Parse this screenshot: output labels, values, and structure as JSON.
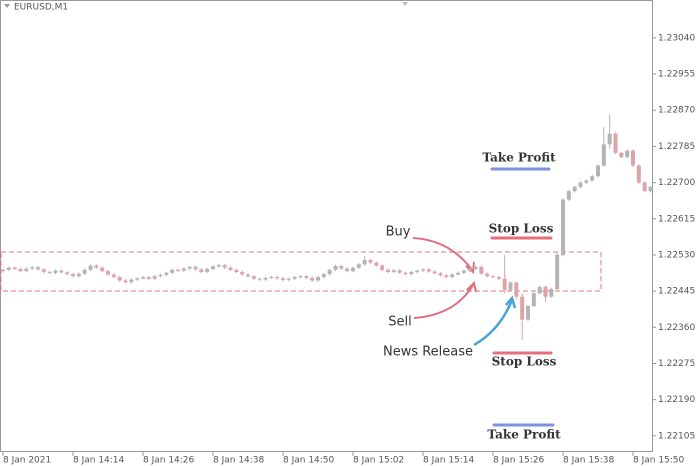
{
  "chart_data": {
    "type": "candlestick",
    "title": "EURUSD,M1",
    "categories": [
      "8 Jan 2021",
      null,
      null,
      null,
      null,
      null,
      null,
      null,
      null,
      null,
      null,
      null,
      "8 Jan 14:14",
      null,
      null,
      null,
      null,
      null,
      null,
      null,
      null,
      null,
      null,
      null,
      "8 Jan 14:26",
      null,
      null,
      null,
      null,
      null,
      null,
      null,
      null,
      null,
      null,
      null,
      "8 Jan 14:38",
      null,
      null,
      null,
      null,
      null,
      null,
      null,
      null,
      null,
      null,
      null,
      "8 Jan 14:50",
      null,
      null,
      null,
      null,
      null,
      null,
      null,
      null,
      null,
      null,
      null,
      "8 Jan 15:02",
      null,
      null,
      null,
      null,
      null,
      null,
      null,
      null,
      null,
      null,
      null,
      "8 Jan 15:14",
      null,
      null,
      null,
      null,
      null,
      null,
      null,
      null,
      null,
      null,
      null,
      "8 Jan 15:26",
      null,
      null,
      null,
      null,
      null,
      null,
      null,
      null,
      null,
      null,
      null,
      "8 Jan 15:38",
      null,
      null,
      null,
      null,
      null,
      null,
      null,
      null,
      null,
      null,
      null,
      "8 Jan 15:50",
      null,
      null,
      null
    ],
    "open": [
      1.22492,
      1.22495,
      1.225,
      1.22497,
      1.22492,
      1.22498,
      1.22501,
      1.22496,
      1.2249,
      1.22488,
      1.22493,
      1.22489,
      1.22485,
      1.2248,
      1.22486,
      1.22495,
      1.22505,
      1.225,
      1.22492,
      1.22484,
      1.22478,
      1.2247,
      1.22466,
      1.22472,
      1.22475,
      1.22478,
      1.22474,
      1.2248,
      1.22483,
      1.22488,
      1.22495,
      1.22493,
      1.22498,
      1.22502,
      1.22496,
      1.2249,
      1.22497,
      1.22503,
      1.22506,
      1.225,
      1.22495,
      1.2249,
      1.22484,
      1.2248,
      1.22474,
      1.22472,
      1.22476,
      1.22478,
      1.22475,
      1.22471,
      1.22474,
      1.22478,
      1.2248,
      1.22476,
      1.2247,
      1.22478,
      1.22485,
      1.22495,
      1.22504,
      1.22498,
      1.22492,
      1.225,
      1.22508,
      1.22518,
      1.22512,
      1.22505,
      1.22495,
      1.2249,
      1.22494,
      1.22488,
      1.22485,
      1.2249,
      1.22493,
      1.22496,
      1.22491,
      1.22487,
      1.22482,
      1.22478,
      1.22484,
      1.22488,
      1.22493,
      1.22497,
      1.22502,
      1.22486,
      1.2248,
      1.22478,
      1.22474,
      1.22448,
      1.22465,
      1.22432,
      1.22378,
      1.2241,
      1.2244,
      1.22455,
      1.22432,
      1.2245,
      1.2253,
      1.2266,
      1.2268,
      1.2269,
      1.227,
      1.22705,
      1.22715,
      1.2274,
      1.2279,
      1.22815,
      1.2277,
      1.2276,
      1.22775,
      1.2274,
      1.227,
      1.2268
    ],
    "high": [
      1.22498,
      1.22503,
      1.22503,
      1.225,
      1.22501,
      1.22504,
      1.22504,
      1.22499,
      1.22493,
      1.22496,
      1.22496,
      1.22492,
      1.22488,
      1.22489,
      1.22498,
      1.22508,
      1.22508,
      1.22503,
      1.22495,
      1.22487,
      1.22481,
      1.22473,
      1.22475,
      1.22478,
      1.22481,
      1.22481,
      1.22483,
      1.22486,
      1.22491,
      1.22498,
      1.22498,
      1.22501,
      1.22505,
      1.22505,
      1.22499,
      1.225,
      1.22506,
      1.22509,
      1.22509,
      1.22503,
      1.22498,
      1.22493,
      1.22487,
      1.22483,
      1.22477,
      1.22479,
      1.22481,
      1.22481,
      1.22478,
      1.22477,
      1.22481,
      1.22483,
      1.22483,
      1.22479,
      1.22481,
      1.22488,
      1.22498,
      1.22507,
      1.22507,
      1.22501,
      1.22503,
      1.22511,
      1.22528,
      1.22521,
      1.22515,
      1.22508,
      1.22498,
      1.22497,
      1.22497,
      1.22491,
      1.22493,
      1.22496,
      1.22499,
      1.22499,
      1.22494,
      1.2249,
      1.22485,
      1.22487,
      1.22491,
      1.22496,
      1.225,
      1.22505,
      1.22505,
      1.22489,
      1.22483,
      1.22481,
      1.2253,
      1.22468,
      1.22468,
      1.2244,
      1.22413,
      1.22443,
      1.22458,
      1.22458,
      1.22453,
      1.22535,
      1.22663,
      1.22683,
      1.22693,
      1.22703,
      1.22708,
      1.22718,
      1.22743,
      1.2283,
      1.2286,
      1.22818,
      1.22773,
      1.22778,
      1.22778,
      1.22743,
      1.22703,
      1.22693
    ],
    "low": [
      1.22489,
      1.22492,
      1.22494,
      1.22489,
      1.22489,
      1.22495,
      1.22493,
      1.22487,
      1.22485,
      1.22485,
      1.22486,
      1.22482,
      1.22477,
      1.22477,
      1.22483,
      1.22492,
      1.22497,
      1.22489,
      1.22481,
      1.22475,
      1.22467,
      1.22463,
      1.22463,
      1.22469,
      1.22472,
      1.22471,
      1.22471,
      1.22477,
      1.2248,
      1.22485,
      1.2249,
      1.2249,
      1.22495,
      1.22493,
      1.22487,
      1.22487,
      1.22494,
      1.225,
      1.22497,
      1.22492,
      1.22487,
      1.22481,
      1.22477,
      1.22471,
      1.22469,
      1.22469,
      1.22473,
      1.22472,
      1.22468,
      1.22468,
      1.22471,
      1.22475,
      1.22473,
      1.22467,
      1.22467,
      1.22475,
      1.22482,
      1.22492,
      1.22495,
      1.22489,
      1.22489,
      1.22497,
      1.22505,
      1.22509,
      1.22502,
      1.22492,
      1.22487,
      1.22487,
      1.22485,
      1.22482,
      1.22482,
      1.22487,
      1.2249,
      1.22488,
      1.22484,
      1.22479,
      1.22475,
      1.22475,
      1.22481,
      1.22485,
      1.2249,
      1.22494,
      1.22483,
      1.22477,
      1.22475,
      1.22471,
      1.2244,
      1.22445,
      1.22425,
      1.2233,
      1.22375,
      1.22407,
      1.22437,
      1.2242,
      1.22429,
      1.22447,
      1.22527,
      1.22657,
      1.22677,
      1.22687,
      1.22697,
      1.22702,
      1.22712,
      1.22737,
      1.2278,
      1.22767,
      1.22757,
      1.22757,
      1.22737,
      1.22697,
      1.22677,
      1.22677
    ],
    "close": [
      1.22495,
      1.225,
      1.22497,
      1.22492,
      1.22498,
      1.22501,
      1.22496,
      1.2249,
      1.22488,
      1.22493,
      1.22489,
      1.22485,
      1.2248,
      1.22486,
      1.22495,
      1.22505,
      1.225,
      1.22492,
      1.22484,
      1.22478,
      1.2247,
      1.22466,
      1.22472,
      1.22475,
      1.22478,
      1.22474,
      1.2248,
      1.22483,
      1.22488,
      1.22495,
      1.22493,
      1.22498,
      1.22502,
      1.22496,
      1.2249,
      1.22497,
      1.22503,
      1.22506,
      1.225,
      1.22495,
      1.2249,
      1.22484,
      1.2248,
      1.22474,
      1.22472,
      1.22476,
      1.22478,
      1.22475,
      1.22471,
      1.22474,
      1.22478,
      1.2248,
      1.22476,
      1.2247,
      1.22478,
      1.22485,
      1.22495,
      1.22504,
      1.22498,
      1.22492,
      1.225,
      1.22508,
      1.22518,
      1.22512,
      1.22505,
      1.22495,
      1.2249,
      1.22494,
      1.22488,
      1.22485,
      1.2249,
      1.22493,
      1.22496,
      1.22491,
      1.22487,
      1.22482,
      1.22478,
      1.22484,
      1.22488,
      1.22493,
      1.22497,
      1.22502,
      1.22486,
      1.2248,
      1.22478,
      1.22474,
      1.22448,
      1.22465,
      1.22432,
      1.22378,
      1.2241,
      1.2244,
      1.22455,
      1.22432,
      1.2245,
      1.2253,
      1.2266,
      1.2268,
      1.2269,
      1.227,
      1.22705,
      1.22715,
      1.2274,
      1.2279,
      1.22815,
      1.2277,
      1.2276,
      1.22775,
      1.2274,
      1.227,
      1.2268,
      1.2269
    ],
    "up_color": "#b4b4b4",
    "down_color": "#dca3a8",
    "ylim": [
      1.22067,
      1.23129
    ],
    "yticks": [
      {
        "value": 1.2304,
        "label": "1.23040"
      },
      1.22955,
      {
        "value": 1.2287,
        "label": "1.22870"
      },
      1.22785,
      {
        "value": 1.227,
        "label": "1.22700"
      },
      1.22615,
      {
        "value": 1.2253,
        "label": "1.22530"
      },
      1.22445,
      {
        "value": 1.2236,
        "label": "1.22360"
      },
      1.22275,
      {
        "value": 1.2219,
        "label": "1.22190"
      },
      1.22105
    ],
    "annotations": {
      "take_profit_buy": "Take Profit",
      "stop_loss_buy": "Stop Loss",
      "buy": "Buy",
      "sell": "Sell",
      "news": "News Release",
      "stop_loss_sell": "Stop Loss",
      "take_profit_sell": "Take Profit"
    }
  }
}
